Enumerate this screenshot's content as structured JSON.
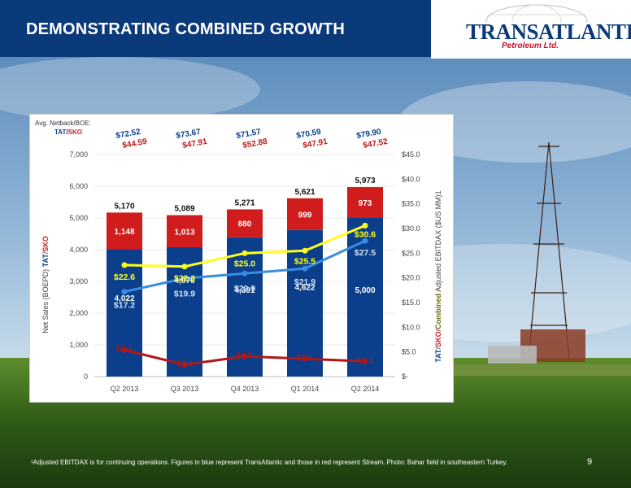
{
  "header": {
    "title": "DEMONSTRATING COMBINED GROWTH"
  },
  "logo": {
    "name": "TRANSATLANTIC",
    "subtitle": "Petroleum Ltd."
  },
  "netback": {
    "label": "Avg. Netback/BOE:",
    "legend_tat": "TAT",
    "legend_sep": "/",
    "legend_sko": "SKO",
    "tat": [
      "$72.52",
      "$73.67",
      "$71.57",
      "$70.59",
      "$79.90"
    ],
    "sko": [
      "$44.59",
      "$47.91",
      "$52.88",
      "$47.91",
      "$47.52"
    ]
  },
  "footnote": "¹Adjusted EBITDAX is for continuing operations. Figures in blue represent TransAtlantic and those in red represent Stream. Photo: Bahar field in southeastern Turkey.",
  "page_number": "9",
  "colors": {
    "tat_bar": "#0b3f8c",
    "sko_bar": "#d01c1c",
    "combined_line": "#ffff1a",
    "tat_line": "#3a8de0",
    "sko_line": "#b01818"
  },
  "chart_data": {
    "type": "bar",
    "categories": [
      "Q2 2013",
      "Q3 2013",
      "Q4 2013",
      "Q1 2014",
      "Q2 2014"
    ],
    "ylabel_parts": [
      "Net Sales (BOEPD) ",
      "TAT",
      "/",
      "SKO"
    ],
    "y2label_parts": [
      "TAT",
      "/",
      "SKO",
      "/",
      "Combined",
      " Adjusted EBITDAX ($US MM)1"
    ],
    "ylim": [
      0,
      7000
    ],
    "y_ticks": [
      "0",
      "1,000",
      "2,000",
      "3,000",
      "4,000",
      "5,000",
      "6,000",
      "7,000"
    ],
    "y2lim": [
      0,
      45
    ],
    "y2_ticks": [
      "$-",
      "$5.0",
      "$10.0",
      "$15.0",
      "$20.0",
      "$25.0",
      "$30.0",
      "$35.0",
      "$40.0",
      "$45.0"
    ],
    "bar_series": [
      {
        "name": "TAT",
        "values": [
          4022,
          4076,
          4391,
          4622,
          5000
        ],
        "labels": [
          "4,022",
          "4,076",
          "4,391",
          "4,622",
          "5,000"
        ]
      },
      {
        "name": "SKO",
        "values": [
          1148,
          1013,
          880,
          999,
          973
        ],
        "labels": [
          "1,148",
          "1,013",
          "880",
          "999",
          "973"
        ]
      }
    ],
    "totals": [
      "5,170",
      "5,089",
      "5,271",
      "5,621",
      "5,973"
    ],
    "line_series": [
      {
        "name": "Combined",
        "values": [
          22.6,
          22.3,
          25.0,
          25.5,
          30.6
        ],
        "labels": [
          "$22.6",
          "$22.3",
          "$25.0",
          "$25.5",
          "$30.6"
        ]
      },
      {
        "name": "TAT",
        "values": [
          17.2,
          19.9,
          20.9,
          21.9,
          27.5
        ],
        "labels": [
          "$17.2",
          "$19.9",
          "$20.9",
          "$21.9",
          "$27.5"
        ]
      },
      {
        "name": "SKO",
        "values": [
          5.4,
          2.4,
          4.1,
          3.6,
          3.1
        ],
        "labels": [
          "$5.4",
          "$2.4",
          "$4.1",
          "$3.6",
          "$3.1"
        ]
      }
    ]
  }
}
